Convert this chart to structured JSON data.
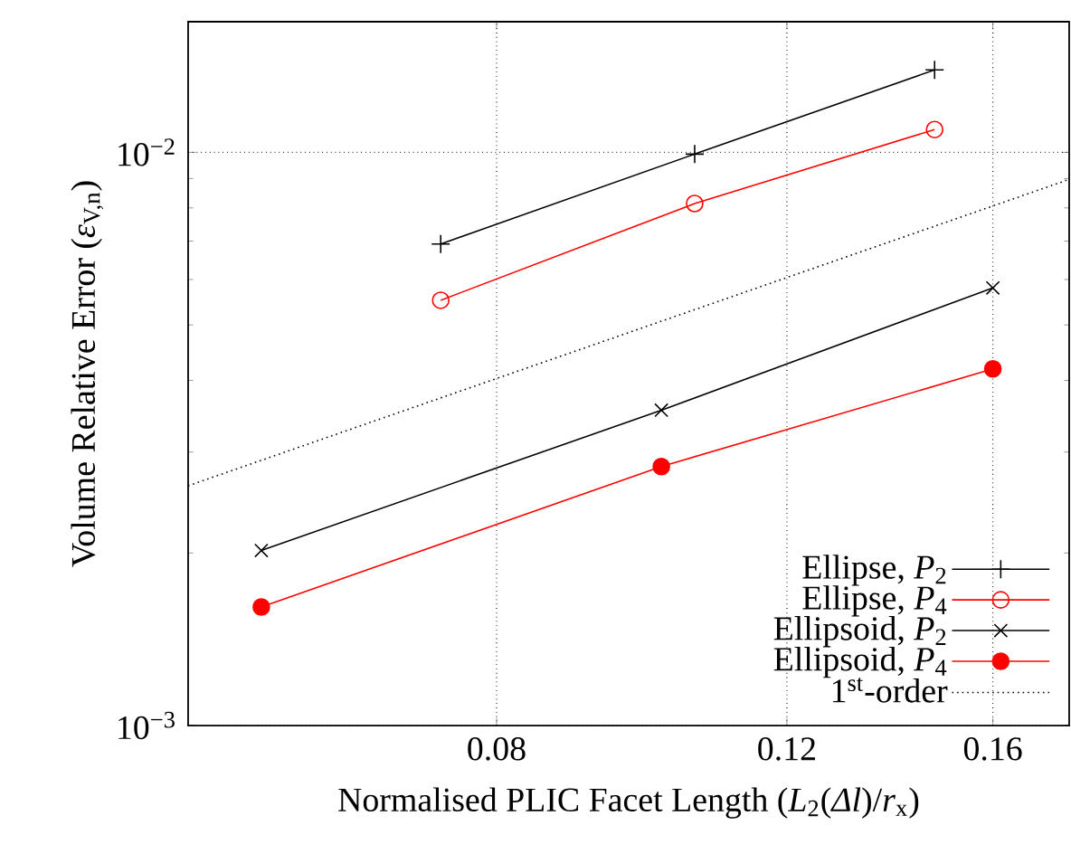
{
  "chart_data": {
    "type": "line",
    "xlabel": "Normalised PLIC Facet Length (*L*$_{2}$(*Δl*)/*r*$_{x}$)",
    "ylabel": "Volume Relative Error (*ε*$_{V,n}$)",
    "log": "xy",
    "grid": true,
    "legend": "bottom right",
    "xlim": [
      0.052,
      0.178
    ],
    "ylim": [
      0.001,
      0.0169
    ],
    "xticks": [
      0.08,
      0.12,
      0.16
    ],
    "yticks": [
      {
        "value": 0.001,
        "label": "10$^{−3}$"
      },
      {
        "value": 0.01,
        "label": "10$^{−2}$"
      }
    ],
    "series": [
      {
        "name": "Ellipse, *P*$_{2}$",
        "color": "#000000",
        "marker": "plus",
        "x": [
          0.074,
          0.1055,
          0.1475
        ],
        "values": [
          0.00692,
          0.00993,
          0.01393
        ]
      },
      {
        "name": "Ellipse, *P*$_{4}$",
        "color": "#ff0000",
        "marker": "circle_open",
        "x": [
          0.074,
          0.1055,
          0.1475
        ],
        "values": [
          0.00552,
          0.00814,
          0.01096
        ]
      },
      {
        "name": "Ellipsoid, *P*$_{2}$",
        "color": "#000000",
        "marker": "cross",
        "x": [
          0.0576,
          0.1007,
          0.16
        ],
        "values": [
          0.00202,
          0.00355,
          0.0058
        ]
      },
      {
        "name": "Ellipsoid, *P*$_{4}$",
        "color": "#ff0000",
        "marker": "circle",
        "x": [
          0.0576,
          0.1007,
          0.16
        ],
        "values": [
          0.00161,
          0.00283,
          0.00419
        ]
      },
      {
        "name": "1$^{st}$-order",
        "color": "#000000",
        "marker": "none",
        "line_style": "dotted",
        "x": [
          0.052,
          0.178
        ],
        "values": [
          0.00262,
          0.00897
        ]
      }
    ]
  }
}
